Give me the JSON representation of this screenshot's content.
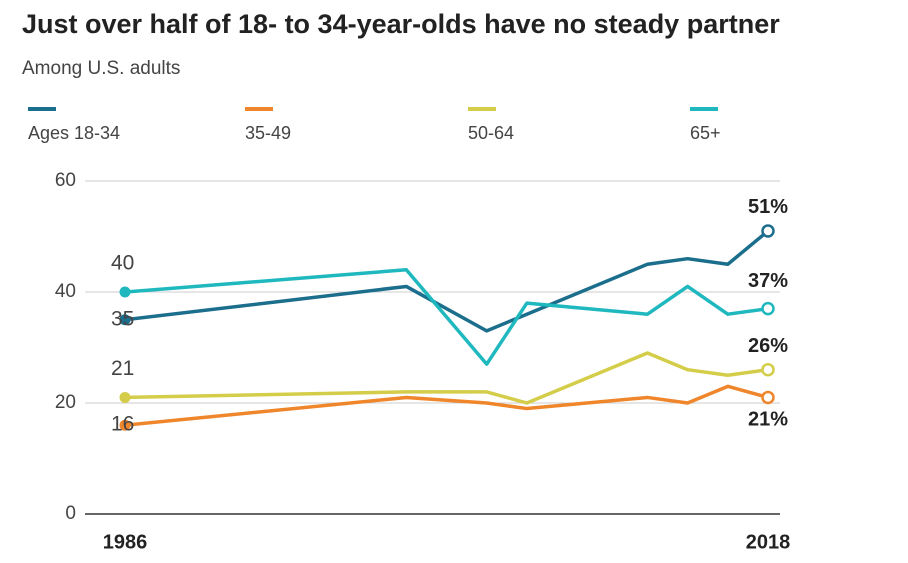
{
  "chart_data": {
    "type": "line",
    "title": "Just over half of 18- to 34-year-olds have no steady partner",
    "subtitle": "Among U.S. adults",
    "x": [
      1986,
      2000,
      2004,
      2006,
      2012,
      2014,
      2016,
      2018
    ],
    "xlim": [
      1986,
      2018
    ],
    "xticks": [
      1986,
      2018
    ],
    "ylim": [
      0,
      60
    ],
    "yticks": [
      0,
      20,
      40,
      60
    ],
    "grid": true,
    "series": [
      {
        "name": "Ages 18-34",
        "color": "#1b6e8c",
        "values": [
          35,
          41,
          33,
          36,
          45,
          46,
          45,
          51
        ],
        "value_labels": [
          "35",
          null,
          null,
          null,
          null,
          null,
          null,
          "51%"
        ]
      },
      {
        "name": "35-49",
        "color": "#f0862c",
        "values": [
          16,
          21,
          20,
          19,
          21,
          20,
          23,
          21
        ],
        "value_labels": [
          "16",
          null,
          null,
          null,
          null,
          null,
          null,
          "21%"
        ]
      },
      {
        "name": "50-64",
        "color": "#d4cd4a",
        "values": [
          21,
          22,
          22,
          20,
          29,
          26,
          25,
          26
        ],
        "value_labels": [
          "21",
          null,
          null,
          null,
          null,
          null,
          null,
          "26%"
        ]
      },
      {
        "name": "65+",
        "color": "#1fb8be",
        "values": [
          40,
          44,
          27,
          38,
          36,
          41,
          36,
          37
        ],
        "value_labels": [
          "40",
          null,
          null,
          null,
          null,
          null,
          null,
          "37%"
        ]
      }
    ]
  }
}
